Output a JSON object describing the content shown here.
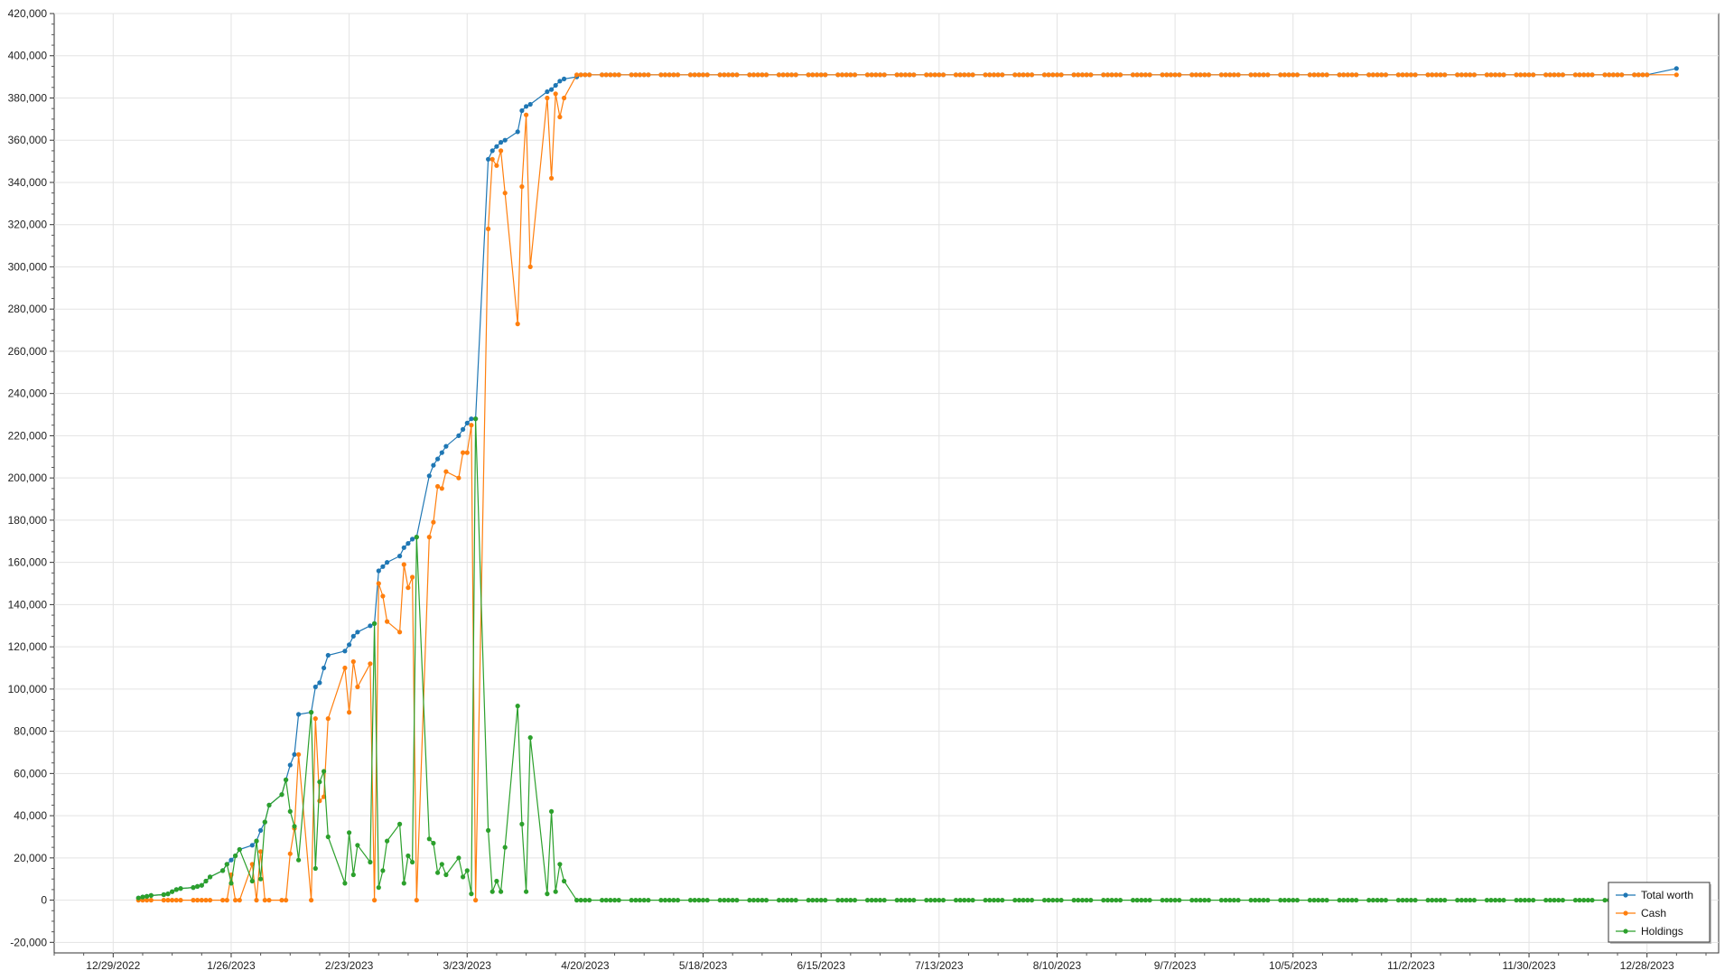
{
  "chart_data": {
    "type": "line",
    "title": "",
    "xlabel": "",
    "ylabel": "",
    "grid": true,
    "legend_position": "bottom-right",
    "x_tick_labels": [
      "12/29/2022",
      "1/26/2023",
      "2/23/2023",
      "3/23/2023",
      "4/20/2023",
      "5/18/2023",
      "6/15/2023",
      "7/13/2023",
      "8/10/2023",
      "9/7/2023",
      "10/5/2023",
      "11/2/2023",
      "11/30/2023",
      "12/28/2023"
    ],
    "y_tick_labels": [
      "-20,000",
      "0",
      "20,000",
      "40,000",
      "60,000",
      "80,000",
      "100,000",
      "120,000",
      "140,000",
      "160,000",
      "180,000",
      "200,000",
      "220,000",
      "240,000",
      "260,000",
      "280,000",
      "300,000",
      "320,000",
      "340,000",
      "360,000",
      "380,000",
      "400,000",
      "420,000"
    ],
    "xlim": [
      "2022-12-15",
      "2024-01-14"
    ],
    "ylim": [
      -25000,
      420000
    ],
    "series": [
      {
        "name": "Total worth",
        "color": "#1f77b4",
        "points": [
          [
            "2023-01-04",
            1000
          ],
          [
            "2023-01-05",
            1500
          ],
          [
            "2023-01-06",
            1800
          ],
          [
            "2023-01-07",
            2200
          ],
          [
            "2023-01-10",
            2600
          ],
          [
            "2023-01-11",
            3000
          ],
          [
            "2023-01-12",
            4000
          ],
          [
            "2023-01-13",
            5000
          ],
          [
            "2023-01-14",
            5500
          ],
          [
            "2023-01-17",
            6000
          ],
          [
            "2023-01-18",
            6500
          ],
          [
            "2023-01-19",
            7000
          ],
          [
            "2023-01-20",
            9000
          ],
          [
            "2023-01-21",
            11000
          ],
          [
            "2023-01-24",
            14000
          ],
          [
            "2023-01-25",
            17000
          ],
          [
            "2023-01-26",
            19000
          ],
          [
            "2023-01-27",
            21000
          ],
          [
            "2023-01-28",
            24000
          ],
          [
            "2023-01-31",
            26000
          ],
          [
            "2023-02-01",
            28000
          ],
          [
            "2023-02-02",
            33000
          ],
          [
            "2023-02-03",
            37000
          ],
          [
            "2023-02-04",
            45000
          ],
          [
            "2023-02-07",
            50000
          ],
          [
            "2023-02-08",
            57000
          ],
          [
            "2023-02-09",
            64000
          ],
          [
            "2023-02-10",
            69000
          ],
          [
            "2023-02-11",
            88000
          ],
          [
            "2023-02-14",
            89000
          ],
          [
            "2023-02-15",
            101000
          ],
          [
            "2023-02-16",
            103000
          ],
          [
            "2023-02-17",
            110000
          ],
          [
            "2023-02-18",
            116000
          ],
          [
            "2023-02-22",
            118000
          ],
          [
            "2023-02-23",
            121000
          ],
          [
            "2023-02-24",
            125000
          ],
          [
            "2023-02-25",
            127000
          ],
          [
            "2023-02-28",
            130000
          ],
          [
            "2023-03-01",
            131000
          ],
          [
            "2023-03-02",
            156000
          ],
          [
            "2023-03-03",
            158000
          ],
          [
            "2023-03-04",
            160000
          ],
          [
            "2023-03-07",
            163000
          ],
          [
            "2023-03-08",
            167000
          ],
          [
            "2023-03-09",
            169000
          ],
          [
            "2023-03-10",
            171000
          ],
          [
            "2023-03-11",
            172000
          ],
          [
            "2023-03-14",
            201000
          ],
          [
            "2023-03-15",
            206000
          ],
          [
            "2023-03-16",
            209000
          ],
          [
            "2023-03-17",
            212000
          ],
          [
            "2023-03-18",
            215000
          ],
          [
            "2023-03-21",
            220000
          ],
          [
            "2023-03-22",
            223000
          ],
          [
            "2023-03-23",
            226000
          ],
          [
            "2023-03-24",
            228000
          ],
          [
            "2023-03-25",
            228000
          ],
          [
            "2023-03-28",
            351000
          ],
          [
            "2023-03-29",
            355000
          ],
          [
            "2023-03-30",
            357000
          ],
          [
            "2023-03-31",
            359000
          ],
          [
            "2023-04-01",
            360000
          ],
          [
            "2023-04-04",
            364000
          ],
          [
            "2023-04-05",
            374000
          ],
          [
            "2023-04-06",
            376000
          ],
          [
            "2023-04-07",
            377000
          ],
          [
            "2023-04-11",
            383000
          ],
          [
            "2023-04-12",
            384000
          ],
          [
            "2023-04-13",
            386000
          ],
          [
            "2023-04-14",
            388000
          ],
          [
            "2023-04-15",
            389000
          ],
          [
            "2023-04-18",
            390000
          ],
          [
            "2023-04-19",
            391000
          ],
          [
            "2023-04-20",
            391000
          ],
          [
            "2023-12-28",
            391000
          ],
          [
            "2024-01-04",
            394000
          ]
        ]
      },
      {
        "name": "Cash",
        "color": "#ff7f0e",
        "points": [
          [
            "2023-01-04",
            0
          ],
          [
            "2023-01-05",
            0
          ],
          [
            "2023-01-06",
            0
          ],
          [
            "2023-01-07",
            0
          ],
          [
            "2023-01-10",
            0
          ],
          [
            "2023-01-11",
            0
          ],
          [
            "2023-01-12",
            0
          ],
          [
            "2023-01-13",
            0
          ],
          [
            "2023-01-14",
            0
          ],
          [
            "2023-01-17",
            0
          ],
          [
            "2023-01-18",
            0
          ],
          [
            "2023-01-19",
            0
          ],
          [
            "2023-01-20",
            0
          ],
          [
            "2023-01-21",
            0
          ],
          [
            "2023-01-24",
            0
          ],
          [
            "2023-01-25",
            0
          ],
          [
            "2023-01-26",
            12000
          ],
          [
            "2023-01-27",
            0
          ],
          [
            "2023-01-28",
            0
          ],
          [
            "2023-01-31",
            17000
          ],
          [
            "2023-02-01",
            0
          ],
          [
            "2023-02-02",
            23000
          ],
          [
            "2023-02-03",
            0
          ],
          [
            "2023-02-04",
            0
          ],
          [
            "2023-02-07",
            0
          ],
          [
            "2023-02-08",
            0
          ],
          [
            "2023-02-09",
            22000
          ],
          [
            "2023-02-10",
            34000
          ],
          [
            "2023-02-11",
            69000
          ],
          [
            "2023-02-14",
            0
          ],
          [
            "2023-02-15",
            86000
          ],
          [
            "2023-02-16",
            47000
          ],
          [
            "2023-02-17",
            49000
          ],
          [
            "2023-02-18",
            86000
          ],
          [
            "2023-02-22",
            110000
          ],
          [
            "2023-02-23",
            89000
          ],
          [
            "2023-02-24",
            113000
          ],
          [
            "2023-02-25",
            101000
          ],
          [
            "2023-02-28",
            112000
          ],
          [
            "2023-03-01",
            0
          ],
          [
            "2023-03-02",
            150000
          ],
          [
            "2023-03-03",
            144000
          ],
          [
            "2023-03-04",
            132000
          ],
          [
            "2023-03-07",
            127000
          ],
          [
            "2023-03-08",
            159000
          ],
          [
            "2023-03-09",
            148000
          ],
          [
            "2023-03-10",
            153000
          ],
          [
            "2023-03-11",
            0
          ],
          [
            "2023-03-14",
            172000
          ],
          [
            "2023-03-15",
            179000
          ],
          [
            "2023-03-16",
            196000
          ],
          [
            "2023-03-17",
            195000
          ],
          [
            "2023-03-18",
            203000
          ],
          [
            "2023-03-21",
            200000
          ],
          [
            "2023-03-22",
            212000
          ],
          [
            "2023-03-23",
            212000
          ],
          [
            "2023-03-24",
            225000
          ],
          [
            "2023-03-25",
            0
          ],
          [
            "2023-03-28",
            318000
          ],
          [
            "2023-03-29",
            351000
          ],
          [
            "2023-03-30",
            348000
          ],
          [
            "2023-03-31",
            355000
          ],
          [
            "2023-04-01",
            335000
          ],
          [
            "2023-04-04",
            273000
          ],
          [
            "2023-04-05",
            338000
          ],
          [
            "2023-04-06",
            372000
          ],
          [
            "2023-04-07",
            300000
          ],
          [
            "2023-04-11",
            380000
          ],
          [
            "2023-04-12",
            342000
          ],
          [
            "2023-04-13",
            382000
          ],
          [
            "2023-04-14",
            371000
          ],
          [
            "2023-04-15",
            380000
          ],
          [
            "2023-04-18",
            391000
          ],
          [
            "2023-04-19",
            391000
          ],
          [
            "2023-04-20",
            391000
          ],
          [
            "2023-12-28",
            391000
          ],
          [
            "2024-01-04",
            391000
          ]
        ]
      },
      {
        "name": "Holdings",
        "color": "#2ca02c",
        "points": [
          [
            "2023-01-04",
            1000
          ],
          [
            "2023-01-05",
            1500
          ],
          [
            "2023-01-06",
            1800
          ],
          [
            "2023-01-07",
            2200
          ],
          [
            "2023-01-10",
            2600
          ],
          [
            "2023-01-11",
            3000
          ],
          [
            "2023-01-12",
            4000
          ],
          [
            "2023-01-13",
            5000
          ],
          [
            "2023-01-14",
            5500
          ],
          [
            "2023-01-17",
            6000
          ],
          [
            "2023-01-18",
            6500
          ],
          [
            "2023-01-19",
            7000
          ],
          [
            "2023-01-20",
            9000
          ],
          [
            "2023-01-21",
            11000
          ],
          [
            "2023-01-24",
            14000
          ],
          [
            "2023-01-25",
            17000
          ],
          [
            "2023-01-26",
            8000
          ],
          [
            "2023-01-27",
            21000
          ],
          [
            "2023-01-28",
            24000
          ],
          [
            "2023-01-31",
            9000
          ],
          [
            "2023-02-01",
            28000
          ],
          [
            "2023-02-02",
            10000
          ],
          [
            "2023-02-03",
            37000
          ],
          [
            "2023-02-04",
            45000
          ],
          [
            "2023-02-07",
            50000
          ],
          [
            "2023-02-08",
            57000
          ],
          [
            "2023-02-09",
            42000
          ],
          [
            "2023-02-10",
            35000
          ],
          [
            "2023-02-11",
            19000
          ],
          [
            "2023-02-14",
            89000
          ],
          [
            "2023-02-15",
            15000
          ],
          [
            "2023-02-16",
            56000
          ],
          [
            "2023-02-17",
            61000
          ],
          [
            "2023-02-18",
            30000
          ],
          [
            "2023-02-22",
            8000
          ],
          [
            "2023-02-23",
            32000
          ],
          [
            "2023-02-24",
            12000
          ],
          [
            "2023-02-25",
            26000
          ],
          [
            "2023-02-28",
            18000
          ],
          [
            "2023-03-01",
            131000
          ],
          [
            "2023-03-02",
            6000
          ],
          [
            "2023-03-03",
            14000
          ],
          [
            "2023-03-04",
            28000
          ],
          [
            "2023-03-07",
            36000
          ],
          [
            "2023-03-08",
            8000
          ],
          [
            "2023-03-09",
            21000
          ],
          [
            "2023-03-10",
            18000
          ],
          [
            "2023-03-11",
            172000
          ],
          [
            "2023-03-14",
            29000
          ],
          [
            "2023-03-15",
            27000
          ],
          [
            "2023-03-16",
            13000
          ],
          [
            "2023-03-17",
            17000
          ],
          [
            "2023-03-18",
            12000
          ],
          [
            "2023-03-21",
            20000
          ],
          [
            "2023-03-22",
            11000
          ],
          [
            "2023-03-23",
            14000
          ],
          [
            "2023-03-24",
            3000
          ],
          [
            "2023-03-25",
            228000
          ],
          [
            "2023-03-28",
            33000
          ],
          [
            "2023-03-29",
            4000
          ],
          [
            "2023-03-30",
            9000
          ],
          [
            "2023-03-31",
            4000
          ],
          [
            "2023-04-01",
            25000
          ],
          [
            "2023-04-04",
            92000
          ],
          [
            "2023-04-05",
            36000
          ],
          [
            "2023-04-06",
            4000
          ],
          [
            "2023-04-07",
            77000
          ],
          [
            "2023-04-11",
            3000
          ],
          [
            "2023-04-12",
            42000
          ],
          [
            "2023-04-13",
            4000
          ],
          [
            "2023-04-14",
            17000
          ],
          [
            "2023-04-15",
            9000
          ],
          [
            "2023-04-18",
            0
          ],
          [
            "2023-04-19",
            0
          ],
          [
            "2023-04-20",
            0
          ],
          [
            "2023-12-28",
            0
          ],
          [
            "2024-01-04",
            0
          ]
        ]
      }
    ]
  }
}
